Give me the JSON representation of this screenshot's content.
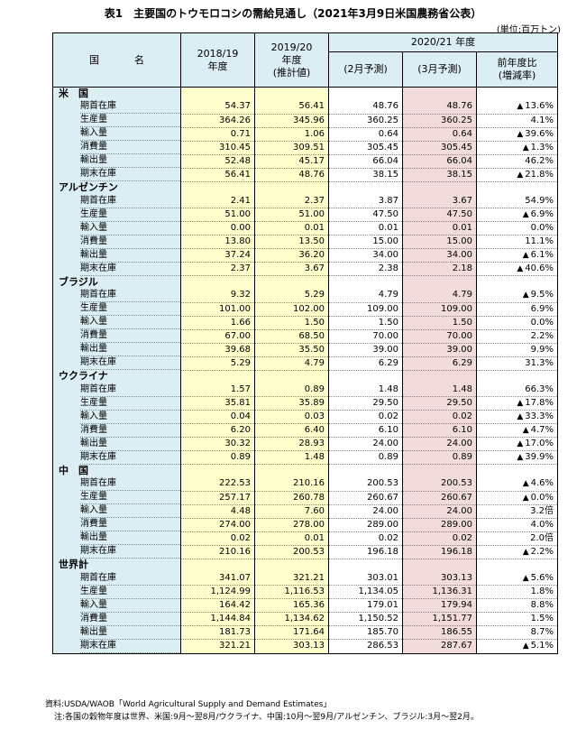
{
  "title": "表1　主要国のトウモロコシの需給見通し（2021年3月9日米国農務省公表）",
  "unit": "(単位:百万トン)",
  "headers": {
    "name": "国　名",
    "y1_line1": "2018/19",
    "y1_line2": "年度",
    "y2_line1": "2019/20",
    "y2_line2": "年度",
    "y2_line3": "(推計値)",
    "y3_group": "2020/21 年度",
    "feb": "(2月予測)",
    "mar": "(3月予測)",
    "chg_line1": "前年度比",
    "chg_line2": "(増減率)"
  },
  "triangle_mark": "▲",
  "groups": [
    {
      "name": "米　国",
      "rows": [
        {
          "label": "期首在庫",
          "y1": "54.37",
          "y2": "56.41",
          "feb": "48.76",
          "mar": "48.76",
          "chg": "13.6%",
          "neg": true
        },
        {
          "label": "生産量",
          "y1": "364.26",
          "y2": "345.96",
          "feb": "360.25",
          "mar": "360.25",
          "chg": "4.1%",
          "neg": false
        },
        {
          "label": "輸入量",
          "y1": "0.71",
          "y2": "1.06",
          "feb": "0.64",
          "mar": "0.64",
          "chg": "39.6%",
          "neg": true
        },
        {
          "label": "消費量",
          "y1": "310.45",
          "y2": "309.51",
          "feb": "305.45",
          "mar": "305.45",
          "chg": "1.3%",
          "neg": true
        },
        {
          "label": "輸出量",
          "y1": "52.48",
          "y2": "45.17",
          "feb": "66.04",
          "mar": "66.04",
          "chg": "46.2%",
          "neg": false
        },
        {
          "label": "期末在庫",
          "y1": "56.41",
          "y2": "48.76",
          "feb": "38.15",
          "mar": "38.15",
          "chg": "21.8%",
          "neg": true
        }
      ]
    },
    {
      "name": "アルゼンチン",
      "rows": [
        {
          "label": "期首在庫",
          "y1": "2.41",
          "y2": "2.37",
          "feb": "3.87",
          "mar": "3.67",
          "chg": "54.9%",
          "neg": false
        },
        {
          "label": "生産量",
          "y1": "51.00",
          "y2": "51.00",
          "feb": "47.50",
          "mar": "47.50",
          "chg": "6.9%",
          "neg": true
        },
        {
          "label": "輸入量",
          "y1": "0.00",
          "y2": "0.01",
          "feb": "0.01",
          "mar": "0.01",
          "chg": "0.0%",
          "neg": false
        },
        {
          "label": "消費量",
          "y1": "13.80",
          "y2": "13.50",
          "feb": "15.00",
          "mar": "15.00",
          "chg": "11.1%",
          "neg": false
        },
        {
          "label": "輸出量",
          "y1": "37.24",
          "y2": "36.20",
          "feb": "34.00",
          "mar": "34.00",
          "chg": "6.1%",
          "neg": true
        },
        {
          "label": "期末在庫",
          "y1": "2.37",
          "y2": "3.67",
          "feb": "2.38",
          "mar": "2.18",
          "chg": "40.6%",
          "neg": true
        }
      ]
    },
    {
      "name": "ブラジル",
      "rows": [
        {
          "label": "期首在庫",
          "y1": "9.32",
          "y2": "5.29",
          "feb": "4.79",
          "mar": "4.79",
          "chg": "9.5%",
          "neg": true
        },
        {
          "label": "生産量",
          "y1": "101.00",
          "y2": "102.00",
          "feb": "109.00",
          "mar": "109.00",
          "chg": "6.9%",
          "neg": false
        },
        {
          "label": "輸入量",
          "y1": "1.66",
          "y2": "1.50",
          "feb": "1.50",
          "mar": "1.50",
          "chg": "0.0%",
          "neg": false
        },
        {
          "label": "消費量",
          "y1": "67.00",
          "y2": "68.50",
          "feb": "70.00",
          "mar": "70.00",
          "chg": "2.2%",
          "neg": false
        },
        {
          "label": "輸出量",
          "y1": "39.68",
          "y2": "35.50",
          "feb": "39.00",
          "mar": "39.00",
          "chg": "9.9%",
          "neg": false
        },
        {
          "label": "期末在庫",
          "y1": "5.29",
          "y2": "4.79",
          "feb": "6.29",
          "mar": "6.29",
          "chg": "31.3%",
          "neg": false
        }
      ]
    },
    {
      "name": "ウクライナ",
      "rows": [
        {
          "label": "期首在庫",
          "y1": "1.57",
          "y2": "0.89",
          "feb": "1.48",
          "mar": "1.48",
          "chg": "66.3%",
          "neg": false
        },
        {
          "label": "生産量",
          "y1": "35.81",
          "y2": "35.89",
          "feb": "29.50",
          "mar": "29.50",
          "chg": "17.8%",
          "neg": true
        },
        {
          "label": "輸入量",
          "y1": "0.04",
          "y2": "0.03",
          "feb": "0.02",
          "mar": "0.02",
          "chg": "33.3%",
          "neg": true
        },
        {
          "label": "消費量",
          "y1": "6.20",
          "y2": "6.40",
          "feb": "6.10",
          "mar": "6.10",
          "chg": "4.7%",
          "neg": true
        },
        {
          "label": "輸出量",
          "y1": "30.32",
          "y2": "28.93",
          "feb": "24.00",
          "mar": "24.00",
          "chg": "17.0%",
          "neg": true
        },
        {
          "label": "期末在庫",
          "y1": "0.89",
          "y2": "1.48",
          "feb": "0.89",
          "mar": "0.89",
          "chg": "39.9%",
          "neg": true
        }
      ]
    },
    {
      "name": "中　国",
      "rows": [
        {
          "label": "期首在庫",
          "y1": "222.53",
          "y2": "210.16",
          "feb": "200.53",
          "mar": "200.53",
          "chg": "4.6%",
          "neg": true
        },
        {
          "label": "生産量",
          "y1": "257.17",
          "y2": "260.78",
          "feb": "260.67",
          "mar": "260.67",
          "chg": "0.0%",
          "neg": true
        },
        {
          "label": "輸入量",
          "y1": "4.48",
          "y2": "7.60",
          "feb": "24.00",
          "mar": "24.00",
          "chg": "3.2倍",
          "neg": false
        },
        {
          "label": "消費量",
          "y1": "274.00",
          "y2": "278.00",
          "feb": "289.00",
          "mar": "289.00",
          "chg": "4.0%",
          "neg": false
        },
        {
          "label": "輸出量",
          "y1": "0.02",
          "y2": "0.01",
          "feb": "0.02",
          "mar": "0.02",
          "chg": "2.0倍",
          "neg": false
        },
        {
          "label": "期末在庫",
          "y1": "210.16",
          "y2": "200.53",
          "feb": "196.18",
          "mar": "196.18",
          "chg": "2.2%",
          "neg": true
        }
      ]
    },
    {
      "name": "世界計",
      "rows": [
        {
          "label": "期首在庫",
          "y1": "341.07",
          "y2": "321.21",
          "feb": "303.01",
          "mar": "303.13",
          "chg": "5.6%",
          "neg": true
        },
        {
          "label": "生産量",
          "y1": "1,124.99",
          "y2": "1,116.53",
          "feb": "1,134.05",
          "mar": "1,136.31",
          "chg": "1.8%",
          "neg": false
        },
        {
          "label": "輸入量",
          "y1": "164.42",
          "y2": "165.36",
          "feb": "179.01",
          "mar": "179.94",
          "chg": "8.8%",
          "neg": false
        },
        {
          "label": "消費量",
          "y1": "1,144.84",
          "y2": "1,134.62",
          "feb": "1,150.52",
          "mar": "1,151.77",
          "chg": "1.5%",
          "neg": false
        },
        {
          "label": "輸出量",
          "y1": "181.73",
          "y2": "171.64",
          "feb": "185.70",
          "mar": "186.55",
          "chg": "8.7%",
          "neg": false
        },
        {
          "label": "期末在庫",
          "y1": "321.21",
          "y2": "303.13",
          "feb": "286.53",
          "mar": "287.67",
          "chg": "5.1%",
          "neg": true
        }
      ]
    }
  ],
  "notes": {
    "source": "資料:USDA/WAOB「World Agricultural Supply and Demand Estimates」",
    "note": "注:各国の穀物年度は世界、米国:9月～翌8月/ウクライナ、中国:10月～翌9月/アルゼンチン、ブラジル:3月～翌2月。"
  }
}
